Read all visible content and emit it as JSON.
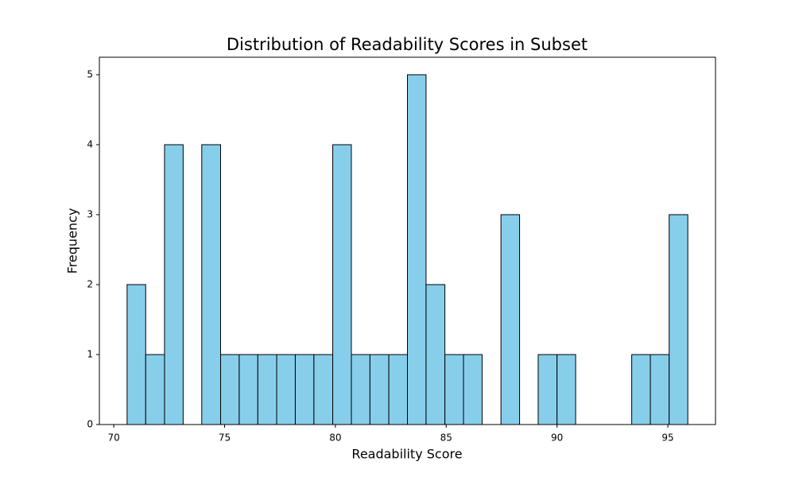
{
  "chart_data": {
    "type": "histogram",
    "title": "Distribution of Readability Scores in Subset",
    "x_label": "Readability Score",
    "y_label": "Frequency",
    "bins": [
      70.6,
      71.44,
      72.29,
      73.13,
      73.97,
      74.82,
      75.66,
      76.5,
      77.35,
      78.19,
      79.03,
      79.88,
      80.72,
      81.56,
      82.41,
      83.25,
      84.09,
      84.94,
      85.78,
      86.62,
      87.47,
      88.31,
      89.15,
      90.0,
      90.84,
      91.68,
      92.53,
      93.37,
      94.21,
      95.06,
      95.9
    ],
    "values": [
      2,
      1,
      4,
      0,
      4,
      1,
      1,
      1,
      1,
      1,
      1,
      4,
      1,
      1,
      1,
      5,
      2,
      1,
      1,
      0,
      3,
      0,
      1,
      1,
      0,
      0,
      0,
      1,
      1,
      3
    ],
    "color": "#87ceeb",
    "edge_color": "#000000",
    "xlim": [
      69.35,
      97.15
    ],
    "ylim": [
      0,
      5.25
    ],
    "xticks": [
      70,
      75,
      80,
      85,
      90,
      95
    ],
    "yticks": [
      0,
      1,
      2,
      3,
      4,
      5
    ],
    "grid": false
  }
}
